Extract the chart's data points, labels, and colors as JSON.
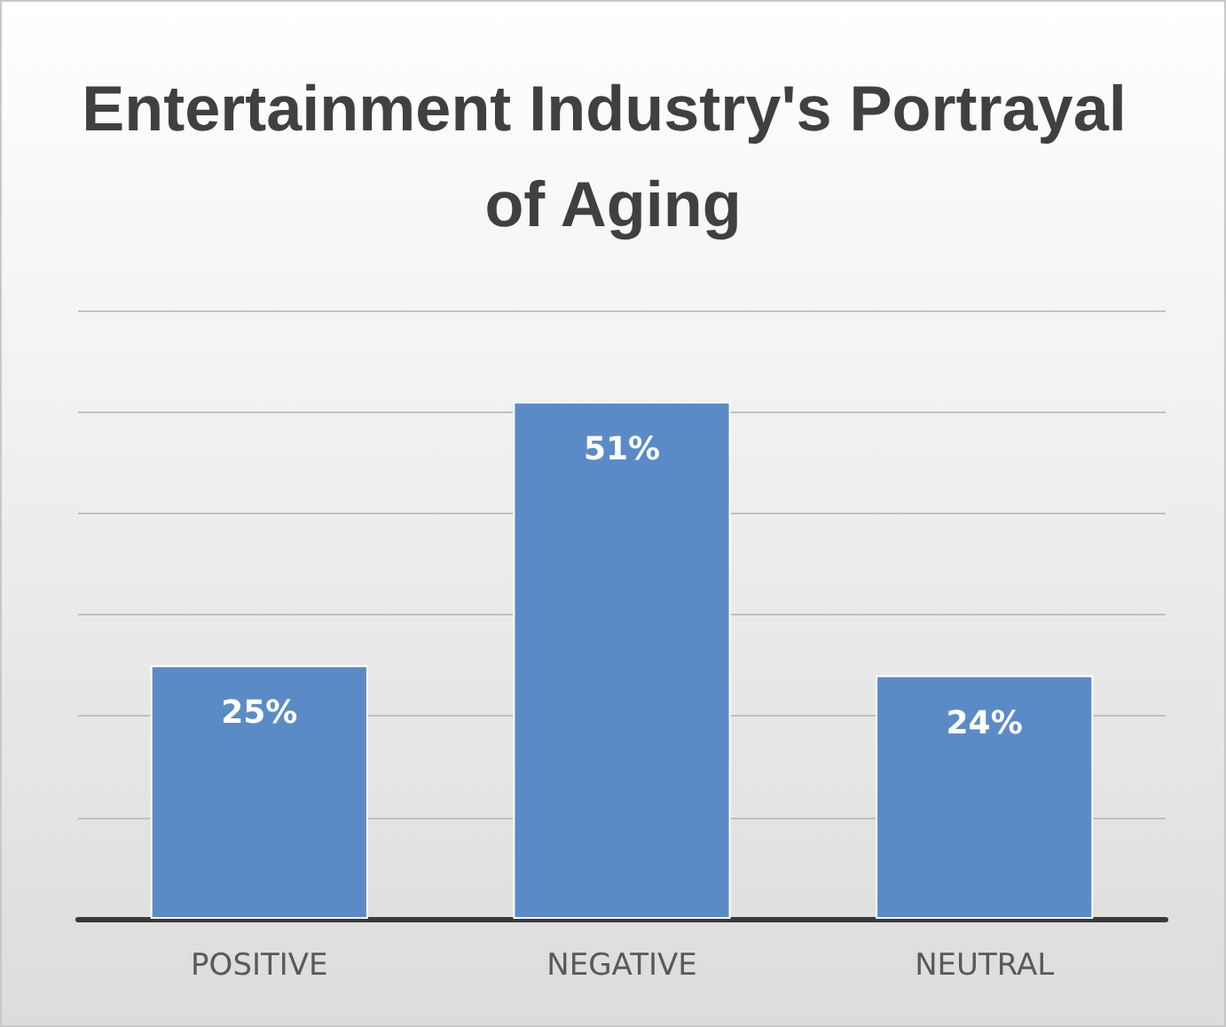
{
  "chart_data": {
    "type": "bar",
    "title": "Entertainment Industry's Portrayal of Aging",
    "categories": [
      "POSITIVE",
      "NEGATIVE",
      "NEUTRAL"
    ],
    "values": [
      25,
      51,
      24
    ],
    "value_labels": [
      "25%",
      "51%",
      "24%"
    ],
    "color": "#5b8bc7",
    "ylim": [
      0,
      60
    ],
    "yticks": [
      {
        "value": 0,
        "label": null
      },
      {
        "value": 10,
        "label": null
      },
      {
        "value": 20,
        "label": null
      },
      {
        "value": 30,
        "label": null
      },
      {
        "value": 40,
        "label": null
      },
      {
        "value": 50,
        "label": null
      },
      {
        "value": 60,
        "label": null
      }
    ],
    "tick_labels": "x",
    "grid": "y"
  }
}
